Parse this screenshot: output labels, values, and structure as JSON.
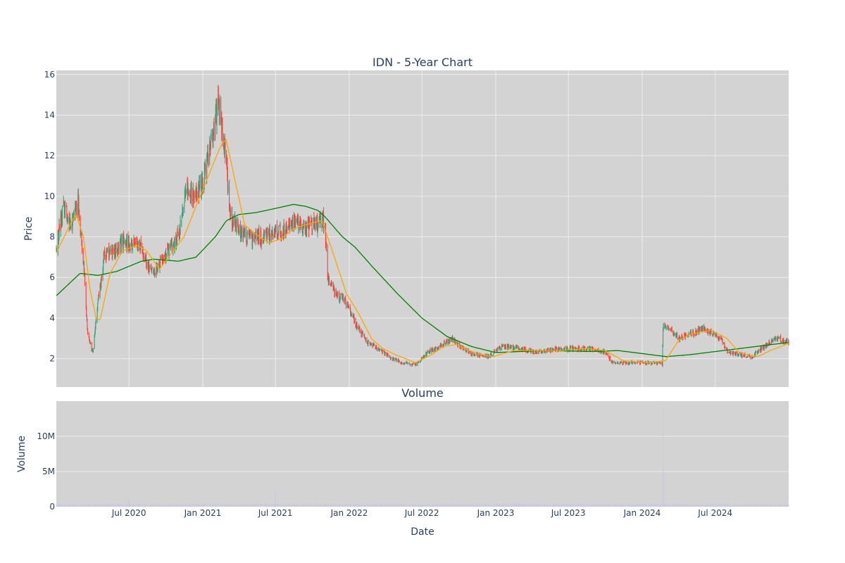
{
  "chart_data": [
    {
      "type": "candlestick",
      "title": "IDN - 5-Year Chart",
      "ylabel": "Price",
      "ylim": [
        0.6,
        16.2
      ],
      "yticks": [
        "2",
        "4",
        "6",
        "8",
        "10",
        "12",
        "14",
        "16"
      ],
      "xlim": [
        "2020-01-02",
        "2024-12-31"
      ],
      "grid": true,
      "colors": {
        "up": "#3d9970",
        "down": "#ff4136",
        "ma_short": "#ffa500",
        "ma_long": "#008000",
        "plot_bg": "#d3d3d3",
        "grid": "#ececec"
      },
      "close_anchors": [
        [
          "2020-01-02",
          7.5
        ],
        [
          "2020-01-20",
          9.6
        ],
        [
          "2020-02-10",
          8.6
        ],
        [
          "2020-02-25",
          9.8
        ],
        [
          "2020-03-10",
          6.5
        ],
        [
          "2020-03-20",
          3.2
        ],
        [
          "2020-04-02",
          2.3
        ],
        [
          "2020-04-15",
          4.8
        ],
        [
          "2020-05-01",
          7.2
        ],
        [
          "2020-06-01",
          7.3
        ],
        [
          "2020-06-15",
          7.8
        ],
        [
          "2020-07-01",
          7.6
        ],
        [
          "2020-08-01",
          7.6
        ],
        [
          "2020-08-15",
          6.6
        ],
        [
          "2020-09-01",
          6.2
        ],
        [
          "2020-10-01",
          7.2
        ],
        [
          "2020-11-01",
          8.0
        ],
        [
          "2020-11-20",
          10.2
        ],
        [
          "2020-12-15",
          10.0
        ],
        [
          "2021-01-05",
          11.0
        ],
        [
          "2021-01-25",
          13.0
        ],
        [
          "2021-02-08",
          14.5
        ],
        [
          "2021-02-25",
          12.5
        ],
        [
          "2021-03-10",
          9.0
        ],
        [
          "2021-04-01",
          8.3
        ],
        [
          "2021-05-01",
          7.8
        ],
        [
          "2021-06-01",
          8.0
        ],
        [
          "2021-07-15",
          8.3
        ],
        [
          "2021-08-15",
          8.7
        ],
        [
          "2021-09-15",
          8.5
        ],
        [
          "2021-10-05",
          8.6
        ],
        [
          "2021-11-01",
          8.8
        ],
        [
          "2021-11-08",
          6.0
        ],
        [
          "2021-12-01",
          5.0
        ],
        [
          "2021-12-20",
          5.0
        ],
        [
          "2022-01-15",
          3.8
        ],
        [
          "2022-02-15",
          2.8
        ],
        [
          "2022-03-15",
          2.5
        ],
        [
          "2022-04-15",
          2.0
        ],
        [
          "2022-05-15",
          1.8
        ],
        [
          "2022-06-15",
          1.7
        ],
        [
          "2022-07-15",
          2.3
        ],
        [
          "2022-08-15",
          2.6
        ],
        [
          "2022-09-15",
          3.0
        ],
        [
          "2022-10-15",
          2.4
        ],
        [
          "2022-11-15",
          2.2
        ],
        [
          "2022-12-15",
          2.1
        ],
        [
          "2023-01-15",
          2.6
        ],
        [
          "2023-03-01",
          2.5
        ],
        [
          "2023-04-15",
          2.3
        ],
        [
          "2023-06-01",
          2.5
        ],
        [
          "2023-07-15",
          2.5
        ],
        [
          "2023-09-01",
          2.5
        ],
        [
          "2023-10-01",
          2.3
        ],
        [
          "2023-10-20",
          1.8
        ],
        [
          "2023-12-01",
          1.8
        ],
        [
          "2024-01-15",
          1.8
        ],
        [
          "2024-02-20",
          1.75
        ],
        [
          "2024-02-22",
          3.6
        ],
        [
          "2024-03-10",
          3.5
        ],
        [
          "2024-04-01",
          3.0
        ],
        [
          "2024-05-01",
          3.2
        ],
        [
          "2024-06-01",
          3.5
        ],
        [
          "2024-07-15",
          3.0
        ],
        [
          "2024-08-01",
          2.3
        ],
        [
          "2024-09-01",
          2.2
        ],
        [
          "2024-10-01",
          2.1
        ],
        [
          "2024-11-01",
          2.6
        ],
        [
          "2024-12-01",
          3.0
        ],
        [
          "2024-12-31",
          2.8
        ]
      ],
      "ma_short_anchors": [
        [
          "2020-01-02",
          7.2
        ],
        [
          "2020-02-05",
          8.6
        ],
        [
          "2020-02-20",
          9.1
        ],
        [
          "2020-03-10",
          8.0
        ],
        [
          "2020-03-25",
          5.5
        ],
        [
          "2020-04-10",
          4.0
        ],
        [
          "2020-04-20",
          3.9
        ],
        [
          "2020-05-15",
          6.2
        ],
        [
          "2020-06-15",
          7.3
        ],
        [
          "2020-07-20",
          7.6
        ],
        [
          "2020-08-15",
          7.3
        ],
        [
          "2020-09-15",
          6.4
        ],
        [
          "2020-10-15",
          7.2
        ],
        [
          "2020-11-15",
          8.0
        ],
        [
          "2020-12-15",
          9.5
        ],
        [
          "2021-01-15",
          11.0
        ],
        [
          "2021-02-15",
          12.5
        ],
        [
          "2021-02-28",
          12.8
        ],
        [
          "2021-03-20",
          11.0
        ],
        [
          "2021-04-15",
          8.6
        ],
        [
          "2021-05-15",
          8.1
        ],
        [
          "2021-06-15",
          7.7
        ],
        [
          "2021-07-15",
          7.9
        ],
        [
          "2021-08-15",
          8.4
        ],
        [
          "2021-09-15",
          8.6
        ],
        [
          "2021-10-25",
          8.8
        ],
        [
          "2021-11-25",
          7.0
        ],
        [
          "2021-12-25",
          5.2
        ],
        [
          "2022-01-25",
          4.2
        ],
        [
          "2022-02-25",
          3.0
        ],
        [
          "2022-03-25",
          2.5
        ],
        [
          "2022-04-25",
          2.2
        ],
        [
          "2022-06-15",
          1.8
        ],
        [
          "2022-07-25",
          2.2
        ],
        [
          "2022-08-25",
          2.6
        ],
        [
          "2022-09-25",
          2.7
        ],
        [
          "2022-10-25",
          2.4
        ],
        [
          "2022-11-25",
          2.2
        ],
        [
          "2022-12-25",
          2.1
        ],
        [
          "2023-02-15",
          2.4
        ],
        [
          "2023-04-15",
          2.4
        ],
        [
          "2023-06-15",
          2.4
        ],
        [
          "2023-08-15",
          2.5
        ],
        [
          "2023-09-30",
          2.4
        ],
        [
          "2023-11-15",
          1.9
        ],
        [
          "2024-01-15",
          1.8
        ],
        [
          "2024-02-28",
          1.9
        ],
        [
          "2024-04-01",
          2.9
        ],
        [
          "2024-05-01",
          3.2
        ],
        [
          "2024-06-20",
          3.4
        ],
        [
          "2024-07-30",
          3.0
        ],
        [
          "2024-08-30",
          2.3
        ],
        [
          "2024-10-15",
          2.1
        ],
        [
          "2024-11-15",
          2.4
        ],
        [
          "2024-12-31",
          2.75
        ]
      ],
      "ma_long_anchors": [
        [
          "2020-01-02",
          5.1
        ],
        [
          "2020-03-01",
          6.2
        ],
        [
          "2020-04-15",
          6.1
        ],
        [
          "2020-06-01",
          6.3
        ],
        [
          "2020-08-01",
          6.8
        ],
        [
          "2020-09-01",
          6.9
        ],
        [
          "2020-10-01",
          6.85
        ],
        [
          "2020-11-01",
          6.8
        ],
        [
          "2020-12-15",
          7.0
        ],
        [
          "2021-02-01",
          8.0
        ],
        [
          "2021-03-01",
          8.8
        ],
        [
          "2021-04-01",
          9.1
        ],
        [
          "2021-05-15",
          9.2
        ],
        [
          "2021-07-01",
          9.4
        ],
        [
          "2021-08-15",
          9.6
        ],
        [
          "2021-09-15",
          9.5
        ],
        [
          "2021-10-15",
          9.3
        ],
        [
          "2021-11-01",
          9.0
        ],
        [
          "2021-12-15",
          8.0
        ],
        [
          "2022-01-15",
          7.5
        ],
        [
          "2022-03-01",
          6.5
        ],
        [
          "2022-05-01",
          5.2
        ],
        [
          "2022-07-01",
          4.0
        ],
        [
          "2022-09-01",
          3.1
        ],
        [
          "2022-11-01",
          2.6
        ],
        [
          "2023-01-01",
          2.3
        ],
        [
          "2023-05-01",
          2.4
        ],
        [
          "2023-09-01",
          2.35
        ],
        [
          "2023-11-01",
          2.4
        ],
        [
          "2024-01-01",
          2.25
        ],
        [
          "2024-03-01",
          2.1
        ],
        [
          "2024-05-01",
          2.2
        ],
        [
          "2024-07-01",
          2.35
        ],
        [
          "2024-09-01",
          2.5
        ],
        [
          "2024-12-31",
          2.8
        ]
      ]
    },
    {
      "type": "bar",
      "title": "Volume",
      "xlabel": "Date",
      "ylabel": "Volume",
      "ylim": [
        0,
        15000000
      ],
      "yticks": [
        {
          "value": 0,
          "label": "0"
        },
        {
          "value": 5000000,
          "label": "5M"
        },
        {
          "value": 10000000,
          "label": "10M"
        }
      ],
      "xticks": [
        {
          "date": "2020-07-01",
          "label": "Jul 2020"
        },
        {
          "date": "2021-01-01",
          "label": "Jan 2021"
        },
        {
          "date": "2021-07-01",
          "label": "Jul 2021"
        },
        {
          "date": "2022-01-01",
          "label": "Jan 2022"
        },
        {
          "date": "2022-07-01",
          "label": "Jul 2022"
        },
        {
          "date": "2023-01-01",
          "label": "Jan 2023"
        },
        {
          "date": "2023-07-01",
          "label": "Jul 2023"
        },
        {
          "date": "2024-01-01",
          "label": "Jan 2024"
        },
        {
          "date": "2024-07-01",
          "label": "Jul 2024"
        }
      ],
      "bar_color": "#c9c3e6",
      "baseline_volume": 250000,
      "spikes": [
        [
          "2020-07-01",
          1200000
        ],
        [
          "2020-11-23",
          1000000
        ],
        [
          "2021-07-01",
          2500000
        ],
        [
          "2022-01-15",
          500000
        ],
        [
          "2024-02-22",
          14000000
        ],
        [
          "2024-02-23",
          5000000
        ]
      ]
    }
  ]
}
